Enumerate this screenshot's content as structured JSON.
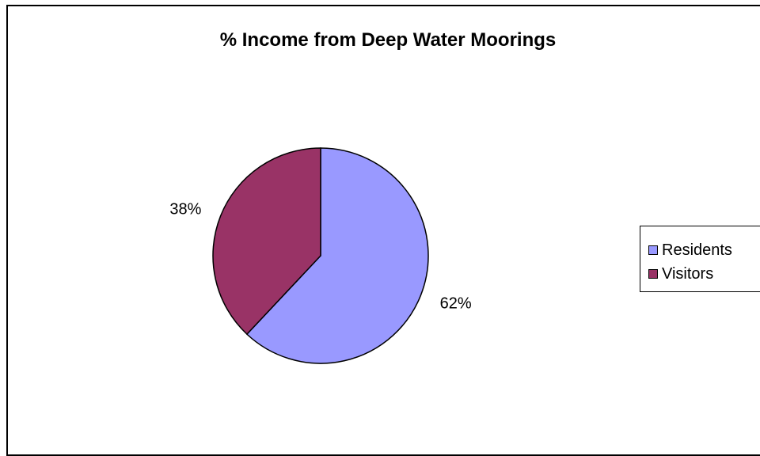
{
  "chart_data": {
    "type": "pie",
    "title": "% Income from Deep Water Moorings",
    "categories": [
      "Residents",
      "Visitors"
    ],
    "values": [
      62,
      38
    ],
    "labels": [
      "62%",
      "38%"
    ],
    "colors": [
      "#9999ff",
      "#993366"
    ],
    "legend_position": "right",
    "start_angle": "top",
    "direction": "clockwise"
  }
}
